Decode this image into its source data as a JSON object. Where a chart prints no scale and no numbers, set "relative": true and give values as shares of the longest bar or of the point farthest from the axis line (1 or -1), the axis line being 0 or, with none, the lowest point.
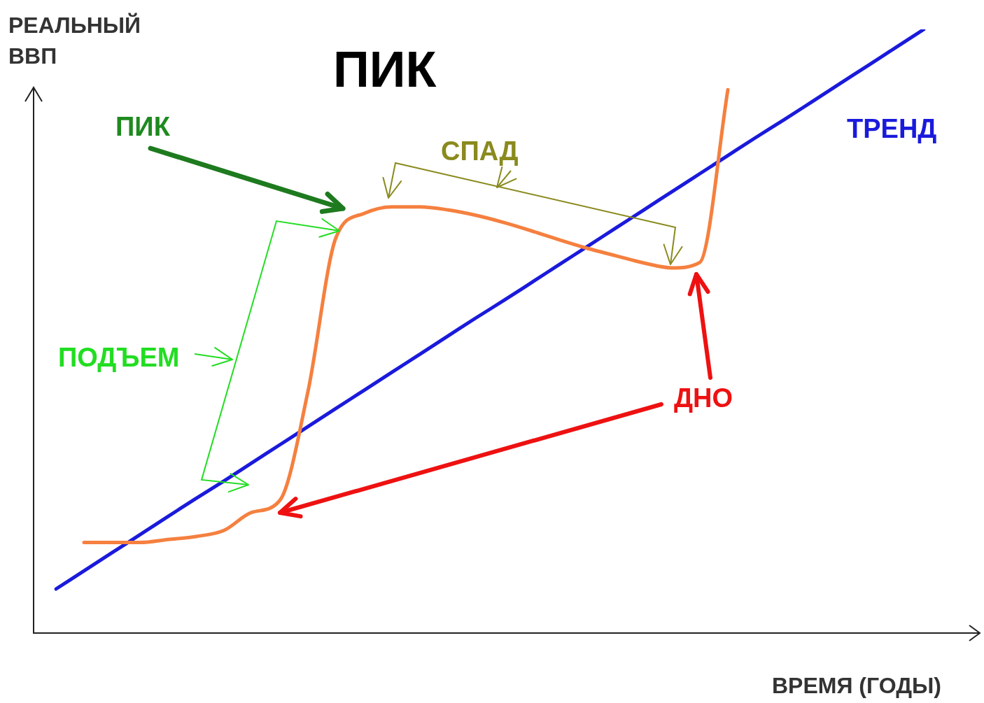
{
  "chart_data": {
    "type": "line",
    "title": "ПИК",
    "xlabel": "ВРЕМЯ (ГОДЫ)",
    "ylabel": "РЕАЛЬНЫЙ ВВП",
    "relative": true,
    "marker": "none",
    "categories": [
      null,
      null,
      null,
      null,
      null,
      null,
      null,
      null,
      null,
      null,
      null,
      null,
      null,
      null,
      null,
      null,
      null,
      null,
      null,
      null,
      null,
      null,
      null,
      null,
      null,
      null,
      null,
      null,
      null,
      null,
      null,
      null
    ],
    "series": [
      {
        "color": "#f5803f",
        "values": [
          null,
          0.15,
          0.15,
          0.15,
          0.155,
          0.16,
          0.17,
          0.2,
          0.22,
          0.4,
          0.655,
          0.695,
          0.706,
          0.706,
          0.701,
          0.692,
          0.68,
          0.666,
          0.651,
          0.637,
          0.625,
          0.613,
          0.605,
          0.614,
          0.9,
          null,
          null,
          null,
          null,
          null,
          null,
          null
        ]
      },
      {
        "name": "ТРЕНД",
        "color": "#1a1adc",
        "values": [
          0.073,
          0.103,
          0.133,
          0.163,
          0.193,
          0.223,
          0.252,
          0.282,
          0.312,
          0.342,
          0.372,
          0.402,
          0.432,
          0.462,
          0.492,
          0.522,
          0.551,
          0.581,
          0.611,
          0.641,
          0.671,
          0.701,
          0.731,
          0.761,
          0.791,
          0.821,
          0.85,
          0.88,
          0.91,
          0.94,
          0.97,
          1.0
        ]
      }
    ],
    "annotations": [
      "ПИК",
      "СПАД",
      "ПОДЪЕМ",
      "ДНО"
    ]
  }
}
